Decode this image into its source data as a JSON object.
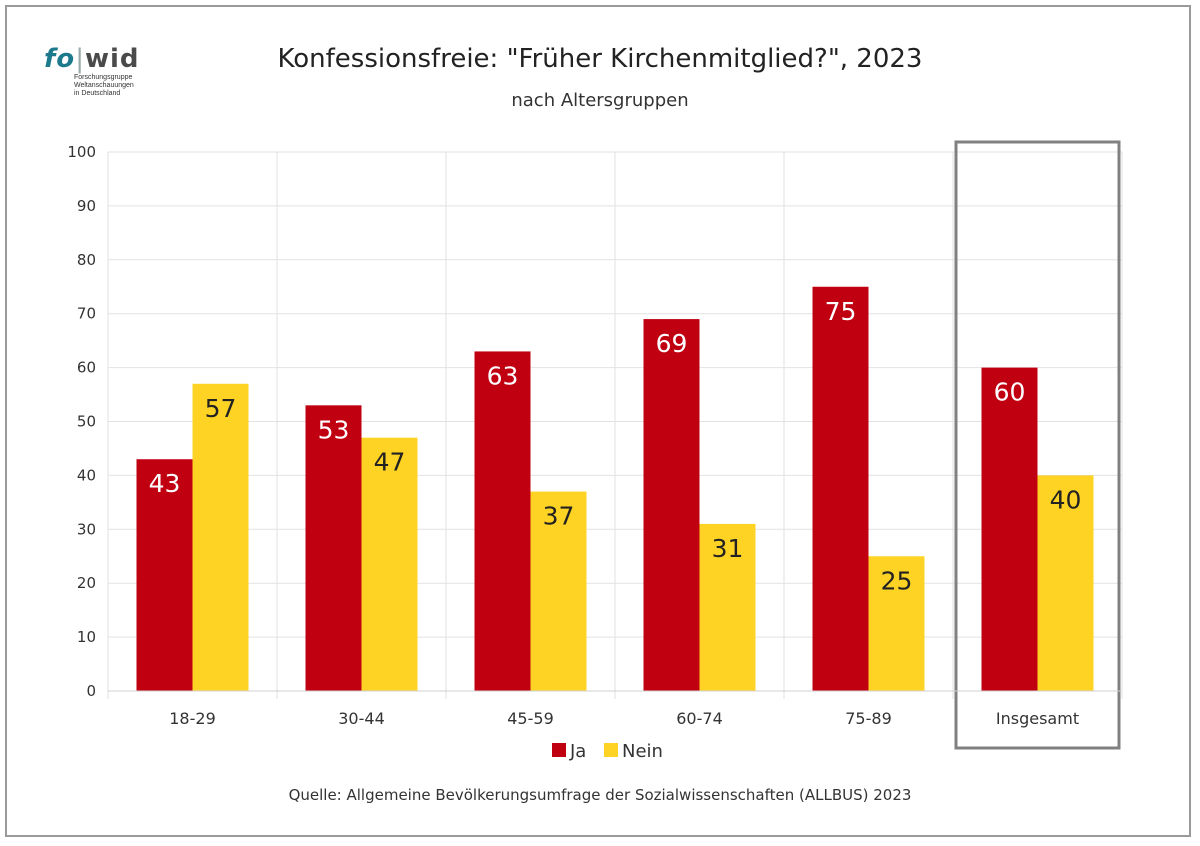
{
  "logo": {
    "text_fo": "fo",
    "text_wid": "wid",
    "sub": "Forschungsgruppe\nWeltanschauungen\nin Deutschland"
  },
  "source": "Quelle: Allgemeine Bevölkerungsumfrage der Sozialwissenschaften (ALLBUS) 2023",
  "chart_data": {
    "type": "bar",
    "title": "Konfessionsfreie: \"Früher Kirchenmitglied?\", 2023",
    "subtitle": "nach Altersgruppen",
    "categories": [
      "18-29",
      "30-44",
      "45-59",
      "60-74",
      "75-89",
      "Insgesamt"
    ],
    "series": [
      {
        "name": "Ja",
        "color": "#c00010",
        "values": [
          43,
          53,
          63,
          69,
          75,
          60
        ]
      },
      {
        "name": "Nein",
        "color": "#ffd324",
        "values": [
          57,
          47,
          37,
          31,
          25,
          40
        ]
      }
    ],
    "ylim": [
      0,
      100
    ],
    "yticks": [
      0,
      10,
      20,
      30,
      40,
      50,
      60,
      70,
      80,
      90,
      100
    ],
    "grid": true,
    "legend": "bottom",
    "highlight_category": "Insgesamt",
    "data_label_colors": {
      "Ja": "#ffffff",
      "Nein": "#222222"
    }
  }
}
